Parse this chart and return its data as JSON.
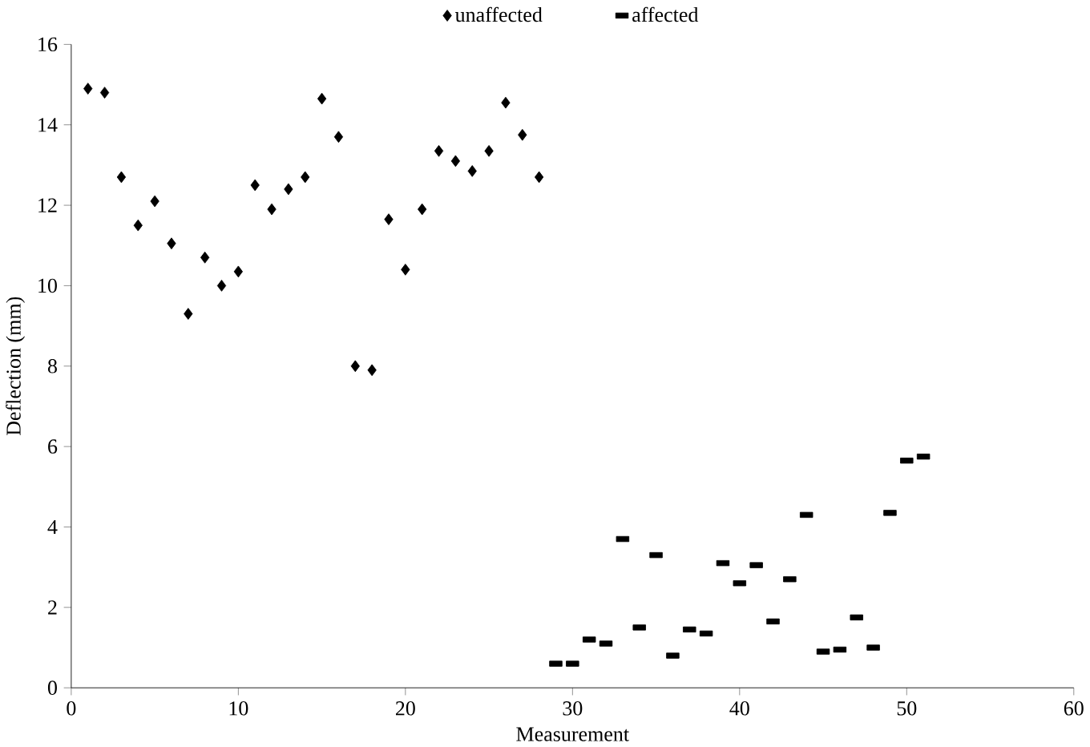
{
  "chart_data": {
    "type": "scatter",
    "xlabel": "Measurement",
    "ylabel": "Deflection (mm)",
    "xlim": [
      0,
      60
    ],
    "ylim": [
      0,
      16
    ],
    "xticks": [
      0,
      10,
      20,
      30,
      40,
      50,
      60
    ],
    "yticks": [
      0,
      2,
      4,
      6,
      8,
      10,
      12,
      14,
      16
    ],
    "legend": "top",
    "grid": false,
    "series": [
      {
        "name": "unaffected",
        "color": "#000000",
        "marker": "diamond",
        "x": [
          1,
          2,
          3,
          4,
          5,
          6,
          7,
          8,
          9,
          10,
          11,
          12,
          13,
          14,
          15,
          16,
          17,
          18,
          19,
          20,
          21,
          22,
          23,
          24,
          25,
          26,
          27,
          28
        ],
        "values": [
          14.9,
          14.8,
          12.7,
          11.5,
          12.1,
          11.05,
          9.3,
          10.7,
          10.0,
          10.35,
          12.5,
          11.9,
          12.4,
          12.7,
          14.65,
          13.7,
          8.0,
          7.9,
          11.65,
          10.4,
          11.9,
          13.35,
          13.1,
          12.85,
          13.35,
          14.55,
          13.75,
          12.7
        ]
      },
      {
        "name": "affected",
        "color": "#000000",
        "marker": "square",
        "x": [
          29,
          30,
          31,
          32,
          33,
          34,
          35,
          36,
          37,
          38,
          39,
          40,
          41,
          42,
          43,
          44,
          45,
          46,
          47,
          48,
          49,
          50,
          51
        ],
        "values": [
          0.6,
          0.6,
          1.2,
          1.1,
          3.7,
          1.5,
          3.3,
          0.8,
          1.45,
          1.35,
          3.1,
          2.6,
          3.05,
          1.65,
          2.7,
          4.3,
          0.9,
          0.95,
          1.75,
          1.0,
          4.35,
          5.65,
          5.75
        ]
      }
    ]
  }
}
